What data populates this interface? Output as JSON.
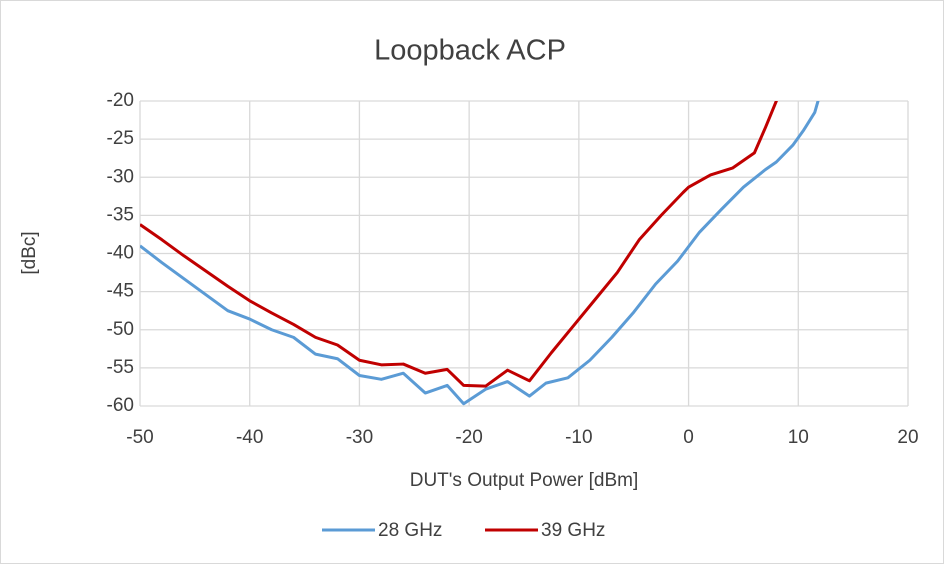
{
  "chart_data": {
    "type": "line",
    "title": "Loopback ACP",
    "x_label": "DUT's Output Power [dBm]",
    "y_label": "[dBc]",
    "xlim": [
      -50,
      20
    ],
    "xticks": [
      -50,
      -40,
      -30,
      -20,
      -10,
      0,
      10,
      20
    ],
    "ylim": [
      -60,
      -20
    ],
    "yticks": [
      -60,
      -55,
      -50,
      -45,
      -40,
      -35,
      -30,
      -25,
      -20
    ],
    "grid": true,
    "legend": "bottom",
    "series": [
      {
        "name": "28 GHz",
        "color": "#5b9bd5",
        "x": [
          -50,
          -48,
          -46,
          -44,
          -42,
          -40,
          -38,
          -36,
          -34,
          -32,
          -30,
          -28,
          -26,
          -24,
          -22,
          -20.5,
          -18.5,
          -16.5,
          -14.5,
          -13,
          -11,
          -9,
          -7,
          -5,
          -3,
          -1,
          1,
          3,
          5,
          7,
          8,
          9.5,
          10.5,
          11.5,
          12
        ],
        "values": [
          -39,
          -41.2,
          -43.3,
          -45.4,
          -47.5,
          -48.6,
          -50,
          -51,
          -53.2,
          -53.8,
          -56,
          -56.5,
          -55.7,
          -58.3,
          -57.3,
          -59.7,
          -57.8,
          -56.8,
          -58.7,
          -57,
          -56.3,
          -54,
          -51,
          -47.7,
          -44,
          -41,
          -37.2,
          -34.2,
          -31.3,
          -29,
          -28,
          -25.8,
          -23.8,
          -21.5,
          -19
        ]
      },
      {
        "name": "39 GHz",
        "color": "#c00000",
        "x": [
          -50,
          -48,
          -46,
          -44,
          -42,
          -40,
          -38,
          -36,
          -34,
          -32,
          -30,
          -28,
          -26,
          -24,
          -22,
          -20.5,
          -18.5,
          -16.5,
          -14.5,
          -12.5,
          -10.5,
          -8.5,
          -6.5,
          -4.5,
          -2.5,
          -0.5,
          0,
          2,
          4,
          6,
          7,
          8,
          8.5
        ],
        "values": [
          -36.2,
          -38.2,
          -40.3,
          -42.3,
          -44.3,
          -46.2,
          -47.8,
          -49.3,
          -51,
          -52,
          -54,
          -54.6,
          -54.5,
          -55.7,
          -55.2,
          -57.3,
          -57.4,
          -55.3,
          -56.7,
          -53,
          -49.5,
          -46,
          -42.5,
          -38.2,
          -35,
          -32,
          -31.3,
          -29.7,
          -28.8,
          -26.8,
          -23.5,
          -20,
          -18
        ]
      }
    ]
  }
}
